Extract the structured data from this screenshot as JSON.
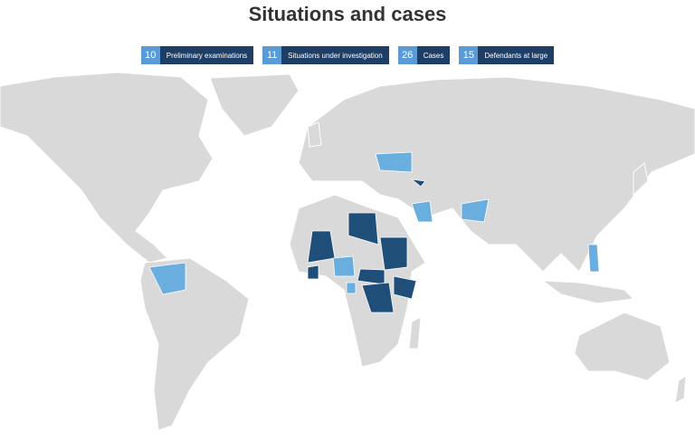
{
  "title": "Situations and cases",
  "legend": [
    {
      "count": 10,
      "label": "Preliminary examinations"
    },
    {
      "count": 11,
      "label": "Situations under investigation"
    },
    {
      "count": 26,
      "label": "Cases"
    },
    {
      "count": 15,
      "label": "Defendants at large"
    }
  ]
}
